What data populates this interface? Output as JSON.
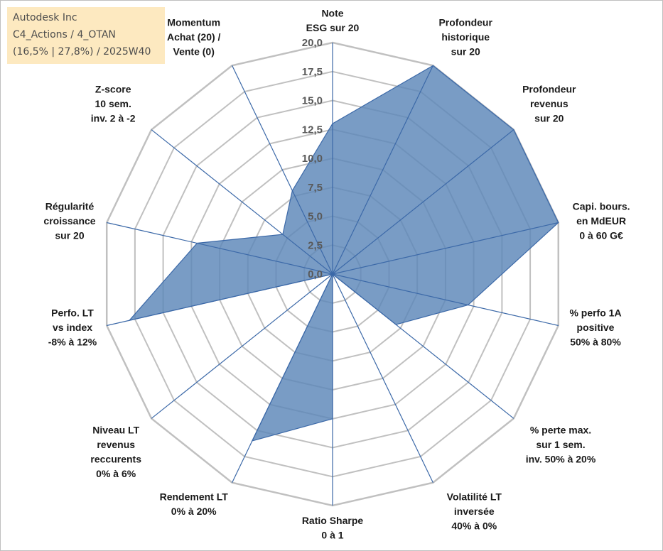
{
  "info_box": {
    "line1": "Autodesk Inc",
    "line2": "C4_Actions / 4_OTAN",
    "line3": "(16,5% | 27,8%) / 2025W40"
  },
  "colors": {
    "fill": "#5b86b8",
    "stroke": "#3c69a8",
    "grid": "#c0c0c0",
    "axis": "#3c69a8",
    "info_bg": "#fde9c0"
  },
  "chart_data": {
    "type": "radar",
    "title": "",
    "range": [
      0,
      20
    ],
    "tick_step": 2.5,
    "tick_labels": [
      "0,0",
      "2,5",
      "5,0",
      "7,5",
      "10,0",
      "12,5",
      "15,0",
      "17,5",
      "20,0"
    ],
    "axes": [
      [
        "Note",
        "ESG sur 20"
      ],
      [
        "Profondeur",
        "historique",
        "sur 20"
      ],
      [
        "Profondeur",
        "revenus",
        "sur 20"
      ],
      [
        "Capi. bours.",
        "en MdEUR",
        "0 à 60 G€"
      ],
      [
        "% perfo 1A",
        "positive",
        "50% à 80%"
      ],
      [
        "% perte max.",
        "sur 1 sem.",
        "inv. 50% à 20%"
      ],
      [
        "Volatilité LT",
        "inversée",
        "40% à 0%"
      ],
      [
        "Ratio Sharpe",
        "0 à 1"
      ],
      [
        "Rendement LT",
        "0% à 20%"
      ],
      [
        "Niveau LT",
        "revenus",
        "reccurents",
        "0% à 6%"
      ],
      [
        "Perfo. LT",
        "vs index",
        "-8% à 12%"
      ],
      [
        "Régularité",
        "croissance",
        "sur 20"
      ],
      [
        "Z-score",
        "10 sem.",
        "inv. 2 à -2"
      ],
      [
        "Momentum",
        "Achat (20) /",
        "Vente (0)"
      ]
    ],
    "series": [
      {
        "name": "Autodesk Inc",
        "values": [
          13.0,
          20.0,
          20.0,
          20.0,
          12.0,
          7.0,
          0.0,
          12.5,
          16.0,
          0.0,
          18.0,
          12.0,
          5.5,
          8.0
        ]
      }
    ]
  }
}
